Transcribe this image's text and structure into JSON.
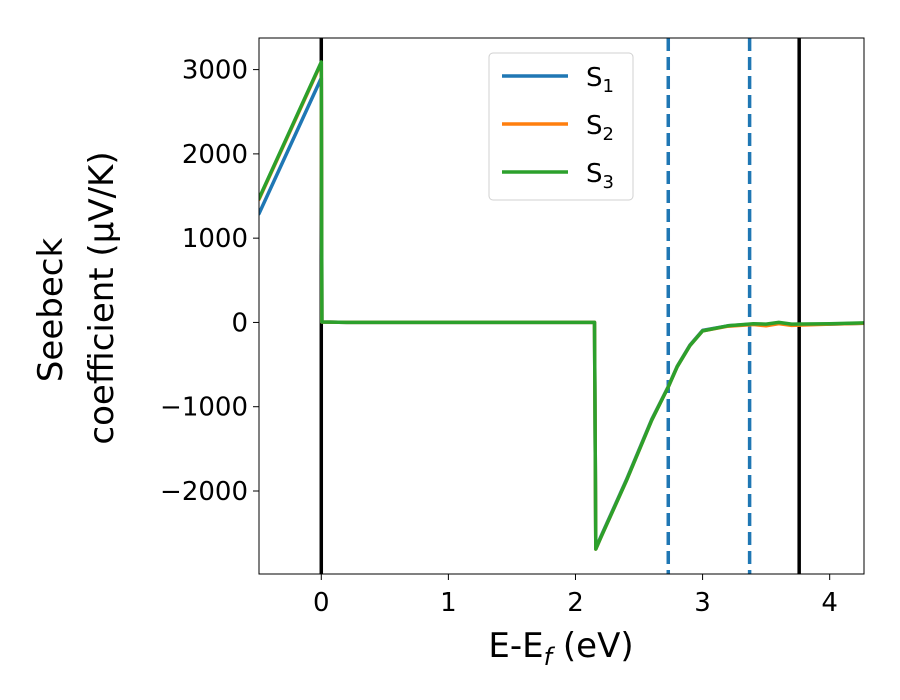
{
  "chart_data": {
    "type": "line",
    "xlabel": "E-E",
    "xlabel_sub": "f",
    "xlabel_unit": " (eV)",
    "ylabel_line1": "Seebeck",
    "ylabel_line2": "coefficient  (μV/K)",
    "xlim": [
      -0.49,
      4.27
    ],
    "ylim": [
      -2985,
      3375
    ],
    "xticks": [
      0,
      1,
      2,
      3,
      4
    ],
    "xtick_labels": [
      "0",
      "1",
      "2",
      "3",
      "4"
    ],
    "yticks": [
      -2000,
      -1000,
      0,
      1000,
      2000,
      3000
    ],
    "ytick_labels": [
      "−2000",
      "−1000",
      "0",
      "1000",
      "2000",
      "3000"
    ],
    "grid": false,
    "legend_placement": "top-center",
    "series": [
      {
        "name": "S",
        "sub": "1",
        "color": "#1f77b4",
        "x": [
          -0.49,
          0.0,
          0.005,
          0.2,
          0.5,
          1.0,
          1.5,
          2.0,
          2.15,
          2.16,
          2.2,
          2.4,
          2.6,
          2.73,
          2.8,
          2.9,
          3.0,
          3.2,
          3.4,
          3.5,
          3.6,
          3.7,
          4.0,
          4.27
        ],
        "y": [
          1290,
          2900,
          5,
          0,
          0,
          0,
          0,
          0,
          0,
          -2680,
          -2540,
          -1870,
          -1150,
          -760,
          -520,
          -270,
          -95,
          -40,
          -20,
          -25,
          -5,
          -25,
          -20,
          -10
        ]
      },
      {
        "name": "S",
        "sub": "2",
        "color": "#ff7f0e",
        "x": [
          -0.49,
          0.0,
          0.005,
          0.2,
          0.5,
          1.0,
          1.5,
          2.0,
          2.15,
          2.16,
          2.2,
          2.4,
          2.6,
          2.73,
          2.8,
          2.9,
          3.0,
          3.2,
          3.4,
          3.5,
          3.6,
          3.7,
          4.0,
          4.27
        ],
        "y": [
          1460,
          3080,
          5,
          0,
          0,
          0,
          0,
          0,
          0,
          -2690,
          -2550,
          -1880,
          -1160,
          -765,
          -525,
          -275,
          -100,
          -45,
          -25,
          -40,
          -15,
          -35,
          -20,
          -10
        ]
      },
      {
        "name": "S",
        "sub": "3",
        "color": "#2ca02c",
        "x": [
          -0.49,
          0.0,
          0.005,
          0.2,
          0.5,
          1.0,
          1.5,
          2.0,
          2.15,
          2.16,
          2.2,
          2.4,
          2.6,
          2.73,
          2.8,
          2.9,
          3.0,
          3.2,
          3.4,
          3.5,
          3.6,
          3.7,
          4.0,
          4.27
        ],
        "y": [
          1470,
          3090,
          5,
          0,
          0,
          0,
          0,
          0,
          0,
          -2690,
          -2550,
          -1880,
          -1160,
          -765,
          -525,
          -275,
          -100,
          -40,
          -15,
          -20,
          0,
          -20,
          -15,
          -5
        ]
      }
    ],
    "vlines": [
      {
        "x": 0.0,
        "color": "#000000",
        "style": "solid"
      },
      {
        "x": 3.76,
        "color": "#000000",
        "style": "solid"
      },
      {
        "x": 2.73,
        "color": "#1f77b4",
        "style": "dashed"
      },
      {
        "x": 3.37,
        "color": "#1f77b4",
        "style": "dashed"
      }
    ]
  }
}
